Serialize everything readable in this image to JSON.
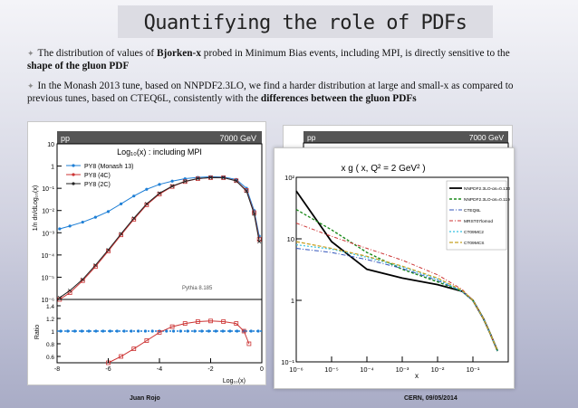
{
  "slide": {
    "title": "Quantifying the role of PDFs",
    "bullets": [
      {
        "t1": "The distribution of values of ",
        "b1": "Bjorken-x",
        "t2": " probed in Minimum Bias events, including MPI, is directly sensitive to the ",
        "b2": "shape of the gluon PDF",
        "t3": ""
      },
      {
        "t1": "In the Monash 2013 tune, based on NNPDF2.3LO, we find a harder distribution at large and small-x as compared to previous tunes, based on CTEQ6L, consistently with the ",
        "b1": "differences between the gluon PDFs",
        "t2": "",
        "b2": "",
        "t3": ""
      }
    ],
    "footer_left": "Juan Rojo",
    "footer_right": "CERN, 09/05/2014"
  },
  "chart_data": [
    {
      "type": "line",
      "title": "Log₁₀(x) : including MPI",
      "process_label": "pp",
      "energy_label": "7000 GeV",
      "generator_label": "Pythia 8.185",
      "ylabel": "1/n dn/dLog₁₀(x)",
      "xlabel": "Log₁₀(x)",
      "log_y": true,
      "xlim": [
        -8,
        0
      ],
      "ylim": [
        1e-06,
        10
      ],
      "x_ticks": [
        "-8",
        "-6",
        "-4",
        "-2",
        "0"
      ],
      "y_ticks": [
        "10",
        "1",
        "10⁻¹",
        "10⁻²",
        "10⁻³",
        "10⁻⁴",
        "10⁻⁵",
        "10⁻⁶"
      ],
      "legend": "top-left",
      "series": [
        {
          "name": "PY8 (Monash 13)",
          "color": "#1e7fd6",
          "x": [
            -7.9,
            -7.5,
            -7,
            -6.5,
            -6,
            -5.5,
            -5,
            -4.5,
            -4,
            -3.5,
            -3,
            -2.5,
            -2,
            -1.5,
            -1,
            -0.6,
            -0.3,
            -0.1
          ],
          "y": [
            0.0015,
            0.002,
            0.003,
            0.005,
            0.009,
            0.02,
            0.045,
            0.09,
            0.15,
            0.21,
            0.27,
            0.31,
            0.33,
            0.32,
            0.25,
            0.1,
            0.01,
            0.0007
          ]
        },
        {
          "name": "PY8 (4C)",
          "color": "#cc3333",
          "x": [
            -7.9,
            -7.5,
            -7,
            -6.5,
            -6,
            -5.5,
            -5,
            -4.5,
            -4,
            -3.5,
            -3,
            -2.5,
            -2,
            -1.5,
            -1,
            -0.6,
            -0.3,
            -0.1
          ],
          "y": [
            1e-06,
            2e-06,
            7e-06,
            3e-05,
            0.00015,
            0.0008,
            0.004,
            0.018,
            0.055,
            0.12,
            0.2,
            0.27,
            0.3,
            0.3,
            0.22,
            0.08,
            0.008,
            0.0005
          ]
        },
        {
          "name": "PY8 (2C)",
          "color": "#222222",
          "x": [
            -7.9,
            -7.5,
            -7,
            -6.5,
            -6,
            -5.5,
            -5,
            -4.5,
            -4,
            -3.5,
            -3,
            -2.5,
            -2,
            -1.5,
            -1,
            -0.6,
            -0.3,
            -0.1
          ],
          "y": [
            1.2e-06,
            2.5e-06,
            8e-06,
            3.5e-05,
            0.00017,
            0.0009,
            0.0045,
            0.02,
            0.06,
            0.125,
            0.205,
            0.275,
            0.305,
            0.3,
            0.215,
            0.075,
            0.007,
            0.0004
          ]
        }
      ],
      "ratio_panel": {
        "ylabel": "Ratio",
        "ylim": [
          0.5,
          1.5
        ],
        "y_ticks": [
          "1.4",
          "1.2",
          "1",
          "0.8",
          "0.6"
        ],
        "x": [
          -6,
          -5.5,
          -5,
          -4.5,
          -4,
          -3.5,
          -3,
          -2.5,
          -2,
          -1.5,
          -1,
          -0.7,
          -0.5
        ],
        "y": [
          0.5,
          0.6,
          0.72,
          0.85,
          0.98,
          1.07,
          1.12,
          1.15,
          1.16,
          1.15,
          1.12,
          1.0,
          0.8
        ]
      }
    },
    {
      "type": "line",
      "title": "x g ( x, Q² = 2 GeV² )",
      "xlabel": "x",
      "log_x": true,
      "log_y": true,
      "xlim": [
        1e-06,
        1
      ],
      "ylim": [
        0.1,
        100
      ],
      "x_ticks": [
        "10⁻⁶",
        "10⁻⁵",
        "10⁻⁴",
        "10⁻³",
        "10⁻²",
        "10⁻¹"
      ],
      "y_ticks": [
        "10²",
        "10",
        "1",
        "10⁻¹"
      ],
      "legend": "top-right",
      "x": [
        1e-06,
        1e-05,
        0.0001,
        0.001,
        0.01,
        0.05,
        0.1,
        0.2,
        0.3,
        0.5
      ],
      "series": [
        {
          "name": "NNPDF2.3LO-αs=0.130",
          "color": "#000000",
          "y": [
            60,
            9,
            3.2,
            2.3,
            1.8,
            1.4,
            1.0,
            0.5,
            0.3,
            0.15
          ]
        },
        {
          "name": "NNPDF2.3LO-αs=0.119",
          "color": "#1a8a1a",
          "y": [
            30,
            14,
            6,
            3.2,
            2.0,
            1.4,
            1.0,
            0.5,
            0.3,
            0.15
          ]
        },
        {
          "name": "CTEQ6L",
          "color": "#3355bb",
          "y": [
            7,
            6,
            4.6,
            3.3,
            2.1,
            1.4,
            1.0,
            0.5,
            0.3,
            0.15
          ]
        },
        {
          "name": "MRST07lomod",
          "color": "#cc3333",
          "y": [
            18,
            11,
            7,
            4.5,
            2.6,
            1.5,
            1.0,
            0.5,
            0.3,
            0.15
          ]
        },
        {
          "name": "CT09MC2",
          "color": "#33c0e0",
          "y": [
            8,
            6.8,
            5,
            3.5,
            2.2,
            1.4,
            1.0,
            0.5,
            0.3,
            0.15
          ]
        },
        {
          "name": "CT09MCS",
          "color": "#c8a020",
          "y": [
            9,
            7,
            5.2,
            3.6,
            2.3,
            1.45,
            1.0,
            0.5,
            0.3,
            0.15
          ]
        }
      ]
    }
  ]
}
